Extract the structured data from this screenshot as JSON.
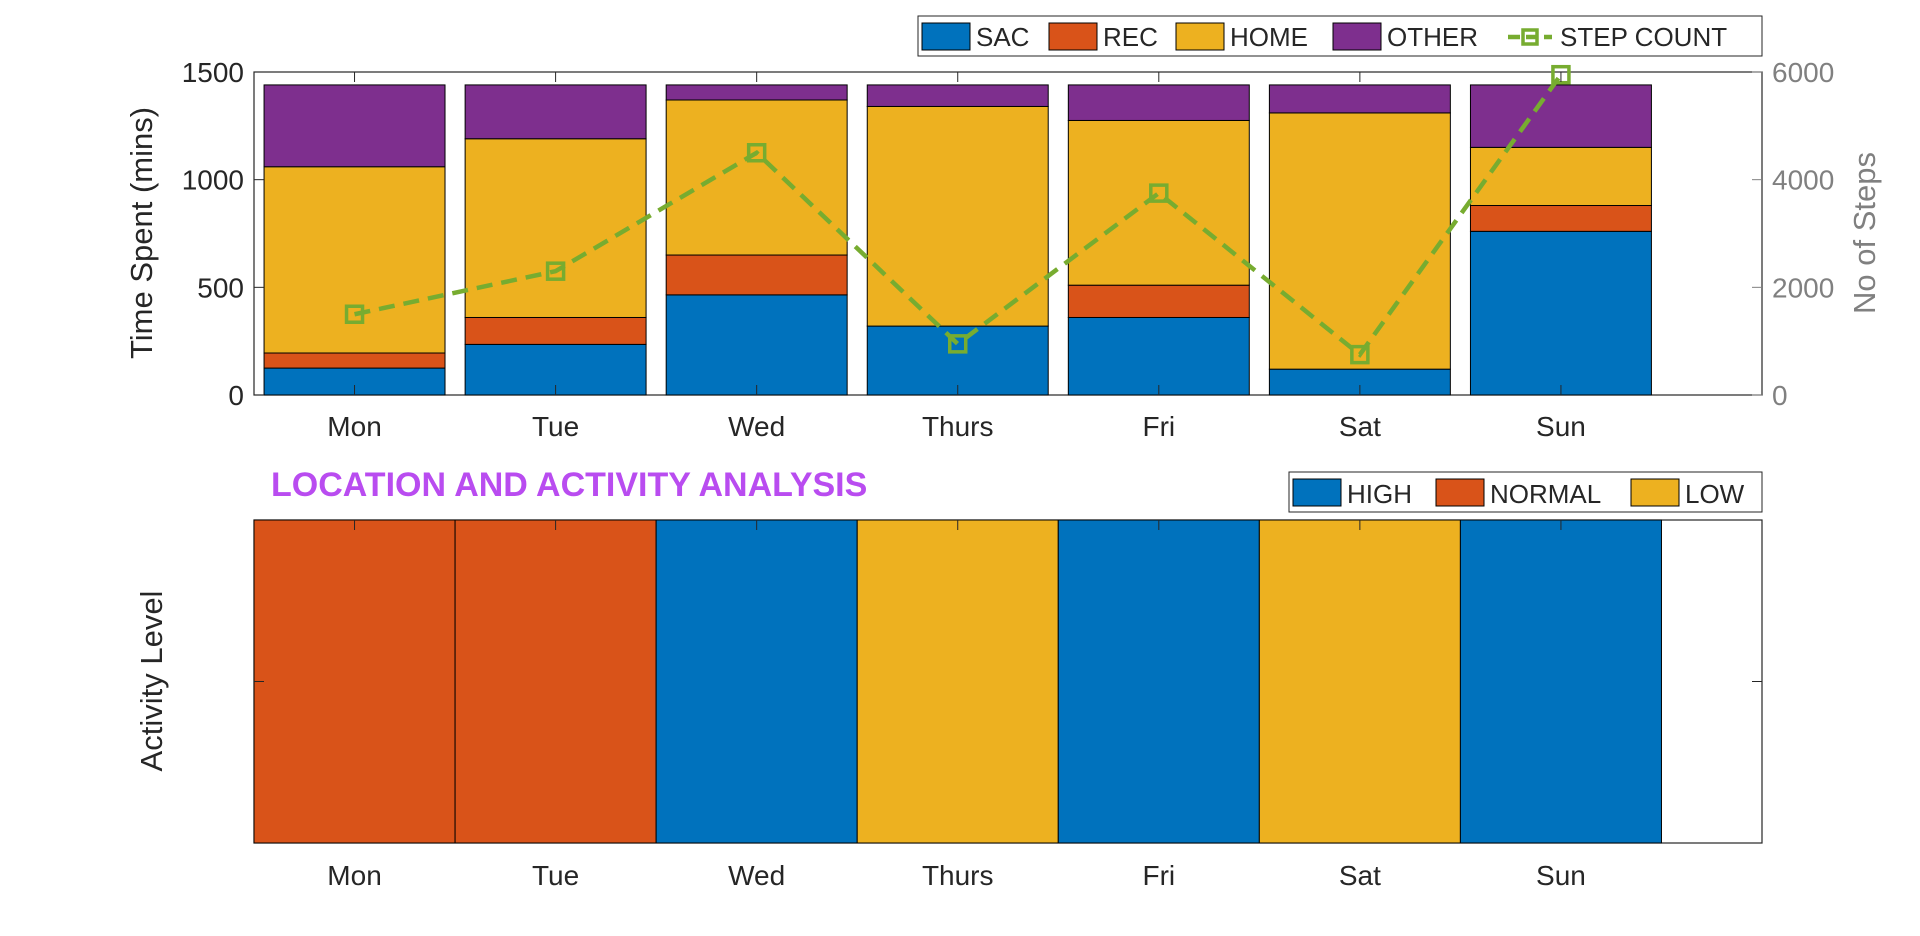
{
  "colors": {
    "SAC": "#0072BD",
    "REC": "#D95319",
    "HOME": "#EDB120",
    "OTHER": "#7E2F8E",
    "STEP_COUNT": "#77AC30",
    "HIGH": "#0072BD",
    "NORMAL": "#D95319",
    "LOW": "#EDB120",
    "right_axis": "#808080",
    "title": "#B94CF0"
  },
  "chart_data": [
    {
      "type": "bar",
      "stacked": true,
      "categories": [
        "Mon",
        "Tue",
        "Wed",
        "Thurs",
        "Fri",
        "Sat",
        "Sun"
      ],
      "ylabel": "Time Spent (mins)",
      "ylim": [
        0,
        1500
      ],
      "yticks": [
        "0",
        "500",
        "1000",
        "1500"
      ],
      "y2label": "No of Steps",
      "y2lim": [
        0,
        6000
      ],
      "y2ticks": [
        "0",
        "2000",
        "4000",
        "6000"
      ],
      "legend_position": "top-right",
      "series": [
        {
          "name": "SAC",
          "values": [
            125,
            235,
            465,
            320,
            360,
            120,
            760
          ]
        },
        {
          "name": "REC",
          "values": [
            70,
            125,
            185,
            0,
            150,
            0,
            120
          ]
        },
        {
          "name": "HOME",
          "values": [
            865,
            830,
            720,
            1020,
            765,
            1190,
            270
          ]
        },
        {
          "name": "OTHER",
          "values": [
            380,
            250,
            70,
            100,
            165,
            130,
            290
          ]
        }
      ],
      "line_series": {
        "name": "STEP COUNT",
        "axis": "right",
        "style": "dashed",
        "marker": "square",
        "values": [
          1500,
          2300,
          4500,
          950,
          3750,
          750,
          5950
        ]
      }
    },
    {
      "type": "bar",
      "title": "LOCATION AND ACTIVITY ANALYSIS",
      "categories": [
        "Mon",
        "Tue",
        "Wed",
        "Thurs",
        "Fri",
        "Sat",
        "Sun"
      ],
      "ylabel": "Activity Level",
      "legend_position": "top-right",
      "levels": [
        "HIGH",
        "NORMAL",
        "LOW"
      ],
      "values": [
        "NORMAL",
        "NORMAL",
        "HIGH",
        "LOW",
        "HIGH",
        "LOW",
        "HIGH"
      ]
    }
  ]
}
